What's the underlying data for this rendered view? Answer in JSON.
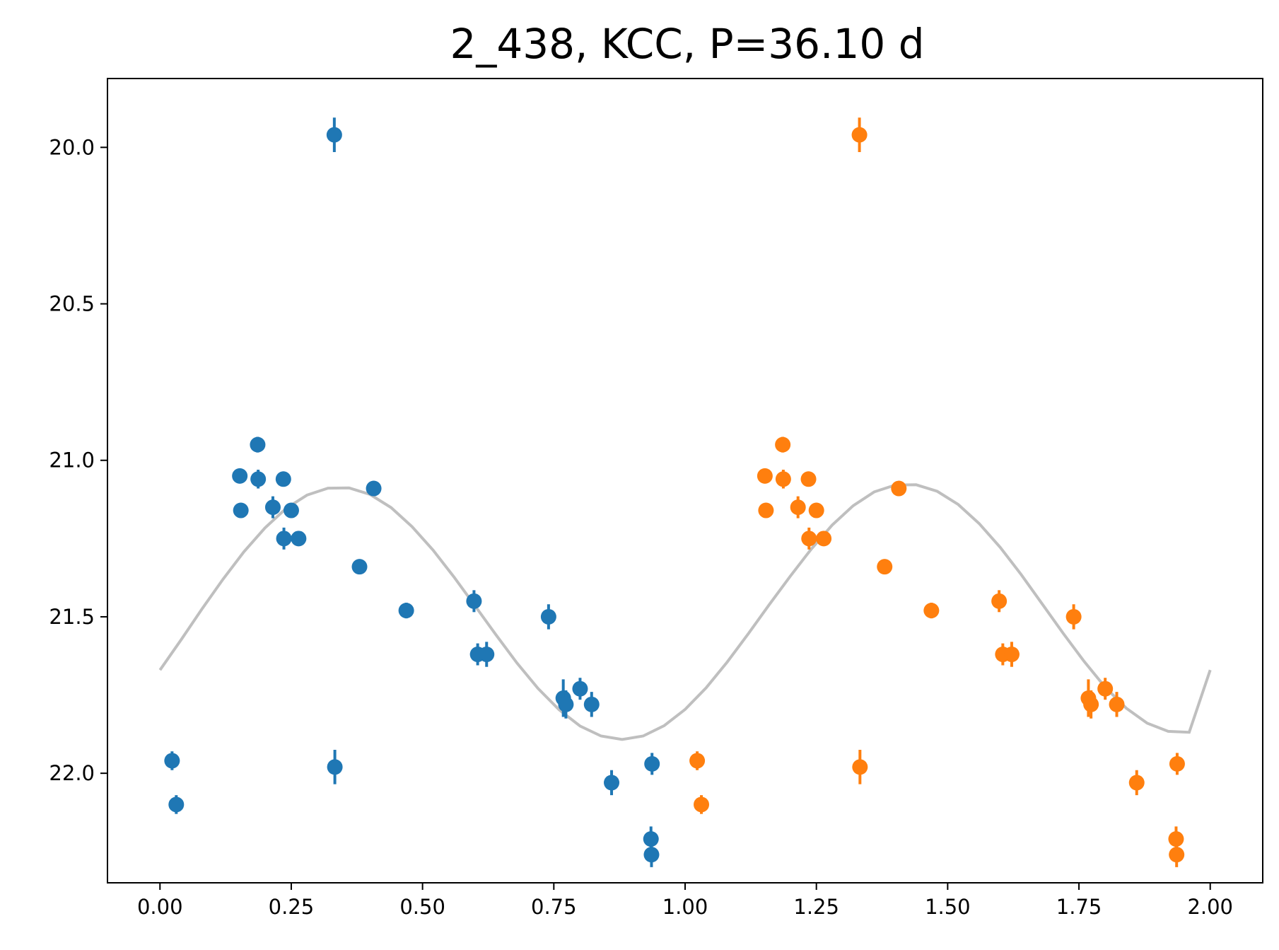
{
  "chart_data": {
    "type": "scatter",
    "title": "2_438, KCC, P=36.10 d",
    "xlabel": "",
    "ylabel": "",
    "xlim": [
      -0.1,
      2.1
    ],
    "ylim": [
      22.35,
      19.78
    ],
    "y_inverted": true,
    "grid": false,
    "x_ticks": [
      0.0,
      0.25,
      0.5,
      0.75,
      1.0,
      1.25,
      1.5,
      1.75,
      2.0
    ],
    "x_tick_labels": [
      "0.00",
      "0.25",
      "0.50",
      "0.75",
      "1.00",
      "1.25",
      "1.50",
      "1.75",
      "2.00"
    ],
    "y_ticks": [
      20.0,
      20.5,
      21.0,
      21.5,
      22.0
    ],
    "y_tick_labels": [
      "20.0",
      "20.5",
      "21.0",
      "21.5",
      "22.0"
    ],
    "colors": {
      "series_1": "#1f77b4",
      "series_2": "#ff7f0e",
      "model": "#bfbfbf",
      "axes": "#000000"
    },
    "series": [
      {
        "color": "#1f77b4",
        "points": [
          {
            "x": 0.023,
            "y": 21.96,
            "err": 0.03
          },
          {
            "x": 0.031,
            "y": 22.1,
            "err": 0.03
          },
          {
            "x": 0.152,
            "y": 21.05,
            "err": 0.02
          },
          {
            "x": 0.154,
            "y": 21.16,
            "err": 0.02
          },
          {
            "x": 0.186,
            "y": 20.95,
            "err": 0.025
          },
          {
            "x": 0.187,
            "y": 21.06,
            "err": 0.03
          },
          {
            "x": 0.215,
            "y": 21.15,
            "err": 0.035
          },
          {
            "x": 0.235,
            "y": 21.06,
            "err": 0.02
          },
          {
            "x": 0.236,
            "y": 21.25,
            "err": 0.035
          },
          {
            "x": 0.25,
            "y": 21.16,
            "err": 0.02
          },
          {
            "x": 0.264,
            "y": 21.25,
            "err": 0.02
          },
          {
            "x": 0.332,
            "y": 19.96,
            "err": 0.055
          },
          {
            "x": 0.333,
            "y": 21.98,
            "err": 0.055
          },
          {
            "x": 0.38,
            "y": 21.34,
            "err": 0.02
          },
          {
            "x": 0.407,
            "y": 21.09,
            "err": 0.02
          },
          {
            "x": 0.469,
            "y": 21.48,
            "err": 0.025
          },
          {
            "x": 0.598,
            "y": 21.45,
            "err": 0.035
          },
          {
            "x": 0.605,
            "y": 21.62,
            "err": 0.035
          },
          {
            "x": 0.622,
            "y": 21.62,
            "err": 0.04
          },
          {
            "x": 0.74,
            "y": 21.5,
            "err": 0.04
          },
          {
            "x": 0.768,
            "y": 21.76,
            "err": 0.06
          },
          {
            "x": 0.773,
            "y": 21.78,
            "err": 0.045
          },
          {
            "x": 0.8,
            "y": 21.73,
            "err": 0.035
          },
          {
            "x": 0.822,
            "y": 21.78,
            "err": 0.04
          },
          {
            "x": 0.86,
            "y": 22.03,
            "err": 0.04
          },
          {
            "x": 0.937,
            "y": 21.97,
            "err": 0.035
          },
          {
            "x": 0.935,
            "y": 22.21,
            "err": 0.04
          },
          {
            "x": 0.936,
            "y": 22.26,
            "err": 0.04
          }
        ]
      },
      {
        "color": "#ff7f0e",
        "points": [
          {
            "x": 1.023,
            "y": 21.96,
            "err": 0.03
          },
          {
            "x": 1.031,
            "y": 22.1,
            "err": 0.03
          },
          {
            "x": 1.152,
            "y": 21.05,
            "err": 0.02
          },
          {
            "x": 1.154,
            "y": 21.16,
            "err": 0.02
          },
          {
            "x": 1.186,
            "y": 20.95,
            "err": 0.025
          },
          {
            "x": 1.187,
            "y": 21.06,
            "err": 0.03
          },
          {
            "x": 1.215,
            "y": 21.15,
            "err": 0.035
          },
          {
            "x": 1.235,
            "y": 21.06,
            "err": 0.02
          },
          {
            "x": 1.236,
            "y": 21.25,
            "err": 0.035
          },
          {
            "x": 1.25,
            "y": 21.16,
            "err": 0.02
          },
          {
            "x": 1.264,
            "y": 21.25,
            "err": 0.02
          },
          {
            "x": 1.332,
            "y": 19.96,
            "err": 0.055
          },
          {
            "x": 1.333,
            "y": 21.98,
            "err": 0.055
          },
          {
            "x": 1.38,
            "y": 21.34,
            "err": 0.02
          },
          {
            "x": 1.407,
            "y": 21.09,
            "err": 0.02
          },
          {
            "x": 1.469,
            "y": 21.48,
            "err": 0.025
          },
          {
            "x": 1.598,
            "y": 21.45,
            "err": 0.035
          },
          {
            "x": 1.605,
            "y": 21.62,
            "err": 0.035
          },
          {
            "x": 1.622,
            "y": 21.62,
            "err": 0.04
          },
          {
            "x": 1.74,
            "y": 21.5,
            "err": 0.04
          },
          {
            "x": 1.768,
            "y": 21.76,
            "err": 0.06
          },
          {
            "x": 1.773,
            "y": 21.78,
            "err": 0.045
          },
          {
            "x": 1.8,
            "y": 21.73,
            "err": 0.035
          },
          {
            "x": 1.822,
            "y": 21.78,
            "err": 0.04
          },
          {
            "x": 1.86,
            "y": 22.03,
            "err": 0.04
          },
          {
            "x": 1.937,
            "y": 21.97,
            "err": 0.035
          },
          {
            "x": 1.935,
            "y": 22.21,
            "err": 0.04
          },
          {
            "x": 1.936,
            "y": 22.26,
            "err": 0.04
          }
        ]
      }
    ],
    "model_curve": {
      "color": "#bfbfbf",
      "type": "line",
      "x": [
        0.0,
        0.04,
        0.08,
        0.12,
        0.16,
        0.2,
        0.24,
        0.28,
        0.32,
        0.36,
        0.4,
        0.44,
        0.48,
        0.52,
        0.56,
        0.6,
        0.64,
        0.68,
        0.72,
        0.76,
        0.8,
        0.84,
        0.88,
        0.92,
        0.96,
        1.0,
        1.04,
        1.08,
        1.12,
        1.16,
        1.2,
        1.24,
        1.28,
        1.32,
        1.36,
        1.4,
        1.44,
        1.48,
        1.52,
        1.56,
        1.6,
        1.64,
        1.68,
        1.72,
        1.76,
        1.8,
        1.84,
        1.88,
        1.92,
        1.96,
        2.0
      ],
      "y": [
        21.67,
        21.574,
        21.475,
        21.38,
        21.292,
        21.216,
        21.154,
        21.111,
        21.089,
        21.088,
        21.109,
        21.151,
        21.212,
        21.287,
        21.373,
        21.465,
        21.558,
        21.648,
        21.729,
        21.797,
        21.849,
        21.881,
        21.892,
        21.881,
        21.848,
        21.796,
        21.727,
        21.645,
        21.555,
        21.462,
        21.371,
        21.284,
        21.207,
        21.145,
        21.101,
        21.079,
        21.078,
        21.099,
        21.141,
        21.202,
        21.278,
        21.365,
        21.459,
        21.553,
        21.643,
        21.725,
        21.792,
        21.84,
        21.866,
        21.869,
        21.67
      ]
    }
  }
}
